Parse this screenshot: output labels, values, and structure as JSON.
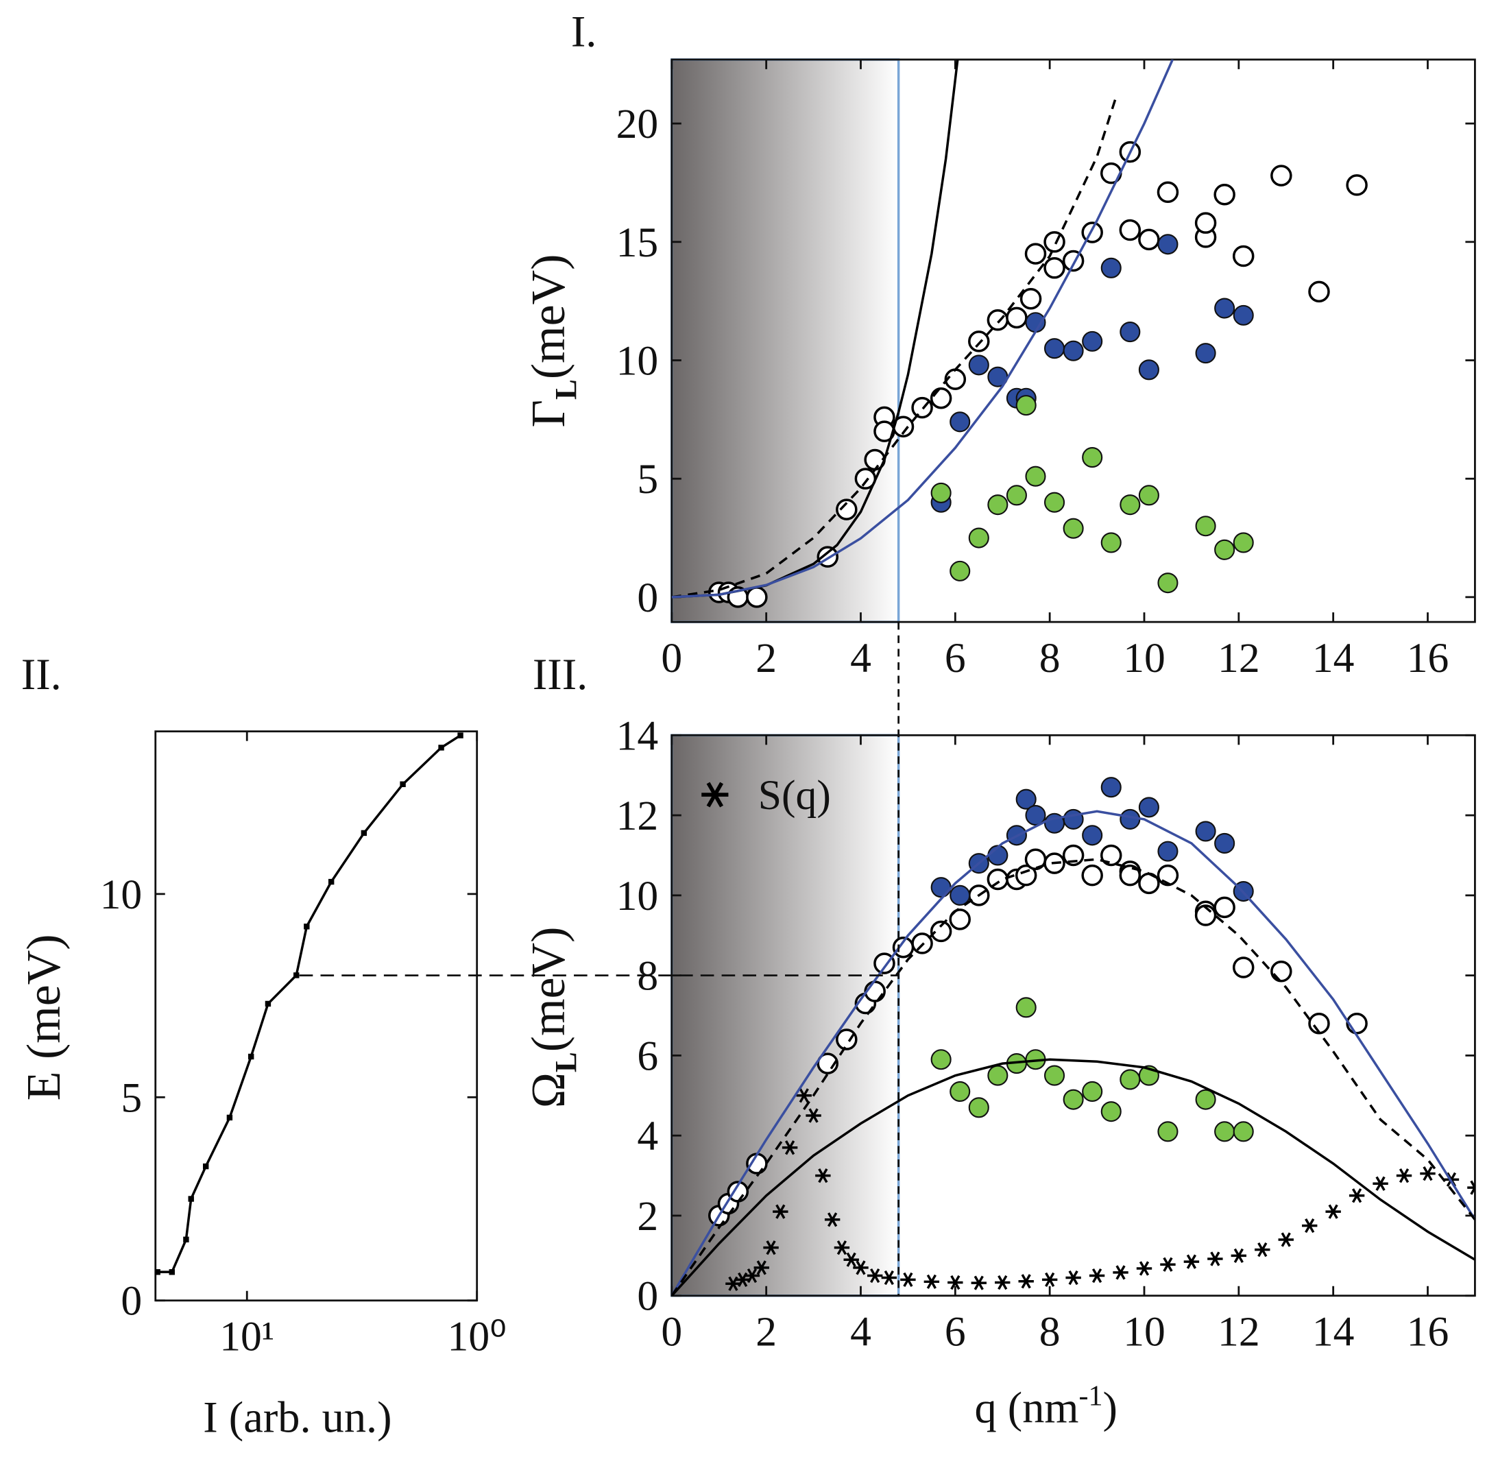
{
  "chart_data": [
    {
      "type": "scatter",
      "panel_label": "I.",
      "y_label": [
        "Γ",
        "L",
        "(meV)"
      ],
      "xlim": [
        0,
        17
      ],
      "ylim": [
        -1.05,
        22.7
      ],
      "xticks": [
        0,
        2,
        4,
        6,
        8,
        10,
        12,
        14,
        16
      ],
      "yticks": [
        0,
        5,
        10,
        15,
        20
      ],
      "shade_xlim": [
        0,
        4.8
      ],
      "series": [
        {
          "marker": "open",
          "color": "#000000",
          "x": [
            1.0,
            1.2,
            1.4,
            1.8,
            3.3,
            3.7,
            4.1,
            4.3,
            4.5,
            4.5,
            4.9,
            5.3,
            5.7,
            6.0,
            6.5,
            6.9,
            7.3,
            7.6,
            7.7,
            8.1,
            8.1,
            8.5,
            8.9,
            9.3,
            9.7,
            9.7,
            10.1,
            10.5,
            11.3,
            11.3,
            11.7,
            12.1,
            12.9,
            13.7,
            14.5
          ],
          "values": [
            0.2,
            0.2,
            0,
            0,
            1.7,
            3.7,
            5.0,
            5.8,
            7.6,
            7.0,
            7.2,
            8.0,
            8.4,
            9.2,
            10.8,
            11.7,
            11.8,
            12.6,
            14.5,
            13.9,
            15.0,
            14.2,
            15.4,
            17.9,
            18.8,
            15.5,
            15.1,
            17.1,
            15.2,
            15.8,
            17.0,
            14.4,
            17.8,
            12.9,
            17.4
          ]
        },
        {
          "marker": "filled",
          "color": "#2d4d9e",
          "x": [
            5.7,
            6.1,
            6.5,
            6.9,
            7.3,
            7.5,
            7.7,
            8.1,
            8.5,
            8.9,
            9.3,
            9.7,
            10.1,
            10.5,
            11.3,
            11.7,
            12.1
          ],
          "values": [
            4.0,
            7.4,
            9.8,
            9.3,
            8.4,
            8.4,
            11.6,
            10.5,
            10.4,
            10.8,
            13.9,
            11.2,
            9.6,
            14.9,
            10.3,
            12.2,
            11.9
          ]
        },
        {
          "marker": "filled",
          "color": "#7bc44a",
          "x": [
            5.7,
            6.1,
            6.5,
            6.9,
            7.3,
            7.5,
            7.7,
            8.1,
            8.5,
            8.9,
            9.3,
            9.7,
            10.1,
            10.5,
            11.3,
            11.7,
            12.1
          ],
          "values": [
            4.4,
            1.1,
            2.5,
            3.9,
            4.3,
            8.1,
            5.1,
            4.0,
            2.9,
            5.9,
            2.3,
            3.9,
            4.3,
            0.6,
            3.0,
            2.0,
            2.3
          ]
        },
        {
          "line": "solid",
          "color": "#000000",
          "x": [
            0,
            1,
            2,
            3,
            3.5,
            4,
            4.5,
            4.8,
            5.0,
            5.5,
            5.8,
            6.05
          ],
          "values": [
            0,
            0.1,
            0.5,
            1.4,
            2.2,
            3.6,
            5.8,
            7.8,
            9.4,
            14.5,
            18.5,
            22.7
          ]
        },
        {
          "line": "dashed",
          "color": "#000000",
          "x": [
            0,
            1,
            2,
            3,
            4,
            5,
            6,
            7,
            8,
            9,
            9.4
          ],
          "values": [
            0,
            0.3,
            1.0,
            2.5,
            4.6,
            7.2,
            9.6,
            11.8,
            14.4,
            18.6,
            21.1
          ]
        },
        {
          "line": "solid",
          "color": "#3a4fa0",
          "x": [
            0,
            1,
            2,
            3,
            4,
            5,
            6,
            7,
            8,
            9,
            10,
            10.6
          ],
          "values": [
            0,
            0.1,
            0.51,
            1.27,
            2.48,
            4.1,
            6.3,
            8.9,
            12.2,
            15.9,
            20.0,
            22.7
          ]
        }
      ]
    },
    {
      "type": "line",
      "panel_label": "II.",
      "y_label": [
        "E (meV)"
      ],
      "x_label": [
        "I (arb. un.)"
      ],
      "log_x": true,
      "xlim": [
        25,
        1
      ],
      "ylim": [
        0,
        14
      ],
      "xticks": [
        {
          "value": 10,
          "label": "10¹"
        },
        {
          "value": 1,
          "label": "10⁰"
        }
      ],
      "yticks": [
        0,
        5,
        10
      ],
      "series": [
        {
          "line": "solid",
          "marker": "square",
          "color": "#000000",
          "x": [
            24.5,
            21.2,
            18.4,
            17.5,
            15.1,
            11.9,
            9.6,
            8.1,
            6.1,
            5.5,
            4.3,
            3.1,
            2.1,
            1.43,
            1.18
          ],
          "values": [
            0.7,
            0.7,
            1.5,
            2.5,
            3.3,
            4.5,
            6.0,
            7.3,
            8.0,
            9.2,
            10.3,
            11.5,
            12.7,
            13.6,
            13.9
          ]
        }
      ]
    },
    {
      "type": "scatter",
      "panel_label": "III.",
      "y_label": [
        "Ω",
        "L",
        "(meV)"
      ],
      "x_label": [
        "q (nm",
        "-1",
        ")"
      ],
      "xlim": [
        0,
        17
      ],
      "ylim": [
        0,
        14
      ],
      "xticks": [
        0,
        2,
        4,
        6,
        8,
        10,
        12,
        14,
        16
      ],
      "yticks": [
        0,
        2,
        4,
        6,
        8,
        10,
        12,
        14
      ],
      "shade_xlim": [
        0,
        4.8
      ],
      "hline": 8,
      "series": [
        {
          "marker": "open",
          "color": "#000000",
          "x": [
            1.0,
            1.2,
            1.4,
            1.8,
            3.3,
            3.7,
            4.1,
            4.3,
            4.5,
            4.9,
            5.3,
            5.7,
            6.1,
            6.5,
            6.9,
            7.3,
            7.5,
            7.7,
            8.1,
            8.5,
            8.9,
            9.3,
            9.7,
            9.7,
            10.1,
            10.5,
            11.3,
            11.3,
            11.7,
            12.1,
            12.9,
            13.7,
            14.5
          ],
          "values": [
            2.0,
            2.3,
            2.6,
            3.3,
            5.8,
            6.4,
            7.3,
            7.6,
            8.3,
            8.7,
            8.8,
            9.1,
            9.4,
            10.0,
            10.4,
            10.4,
            10.5,
            10.9,
            10.8,
            11.0,
            10.5,
            11.0,
            10.6,
            10.5,
            10.3,
            10.5,
            9.6,
            9.5,
            9.7,
            8.2,
            8.1,
            6.8,
            6.8
          ]
        },
        {
          "marker": "filled",
          "color": "#2d4d9e",
          "x": [
            5.7,
            6.1,
            6.5,
            6.9,
            7.3,
            7.5,
            7.7,
            8.1,
            8.5,
            8.9,
            9.3,
            9.7,
            10.1,
            10.5,
            11.3,
            11.7,
            12.1
          ],
          "values": [
            10.2,
            10.0,
            10.8,
            11.0,
            11.5,
            12.4,
            12.0,
            11.8,
            11.9,
            11.5,
            12.7,
            11.9,
            12.2,
            11.1,
            11.6,
            11.3,
            10.1
          ]
        },
        {
          "marker": "filled",
          "color": "#7bc44a",
          "x": [
            5.7,
            6.1,
            6.5,
            6.9,
            7.3,
            7.5,
            7.7,
            8.1,
            8.5,
            8.9,
            9.3,
            9.7,
            10.1,
            10.5,
            11.3,
            11.7,
            12.1
          ],
          "values": [
            5.9,
            5.1,
            4.7,
            5.5,
            5.8,
            7.2,
            5.9,
            5.5,
            4.9,
            5.1,
            4.6,
            5.4,
            5.5,
            4.1,
            4.9,
            4.1,
            4.1
          ]
        },
        {
          "name": "S(q)",
          "marker": "asterisk",
          "color": "#000000",
          "x": [
            1.3,
            1.5,
            1.7,
            1.9,
            2.1,
            2.3,
            2.5,
            2.8,
            3.0,
            3.2,
            3.4,
            3.6,
            3.8,
            4.0,
            4.3,
            4.6,
            5,
            5.5,
            6,
            6.5,
            7,
            7.5,
            8,
            8.5,
            9,
            9.5,
            10,
            10.5,
            11,
            11.5,
            12,
            12.5,
            13,
            13.5,
            14,
            14.5,
            15,
            15.5,
            16,
            16.5,
            17
          ],
          "values": [
            0.3,
            0.4,
            0.5,
            0.7,
            1.2,
            2.1,
            3.7,
            5.0,
            4.5,
            3.0,
            1.9,
            1.2,
            0.9,
            0.7,
            0.5,
            0.45,
            0.4,
            0.35,
            0.33,
            0.32,
            0.33,
            0.36,
            0.4,
            0.45,
            0.5,
            0.58,
            0.68,
            0.78,
            0.85,
            0.92,
            1.0,
            1.15,
            1.4,
            1.75,
            2.1,
            2.5,
            2.8,
            3.0,
            3.05,
            2.9,
            2.7
          ]
        },
        {
          "line": "solid",
          "color": "#3a4fa0",
          "x": [
            0,
            1,
            2,
            3,
            4,
            5,
            6,
            7,
            8,
            9,
            10,
            11,
            12,
            13,
            14,
            15,
            16,
            17
          ],
          "values": [
            0,
            2.0,
            3.9,
            5.7,
            7.4,
            9.0,
            10.3,
            11.3,
            11.9,
            12.1,
            11.9,
            11.3,
            10.2,
            8.9,
            7.4,
            5.6,
            3.8,
            1.9
          ]
        },
        {
          "line": "dashed",
          "color": "#000000",
          "x": [
            0,
            1,
            2,
            3,
            4,
            5,
            6,
            7,
            8,
            9,
            10,
            11,
            12,
            13,
            14,
            15,
            16,
            17
          ],
          "values": [
            0,
            1.7,
            3.3,
            5.0,
            6.8,
            8.4,
            9.6,
            10.4,
            10.8,
            10.9,
            10.6,
            10.0,
            9.0,
            7.7,
            6.1,
            4.4,
            3.4,
            1.9
          ]
        },
        {
          "line": "solid",
          "color": "#000000",
          "x": [
            0,
            1,
            2,
            3,
            4,
            5,
            6,
            7,
            8,
            9,
            10,
            11,
            12,
            13,
            14,
            15,
            16,
            17
          ],
          "values": [
            0,
            1.3,
            2.5,
            3.5,
            4.3,
            5.0,
            5.5,
            5.8,
            5.9,
            5.85,
            5.7,
            5.35,
            4.8,
            4.1,
            3.3,
            2.4,
            1.6,
            0.9
          ]
        }
      ]
    }
  ]
}
